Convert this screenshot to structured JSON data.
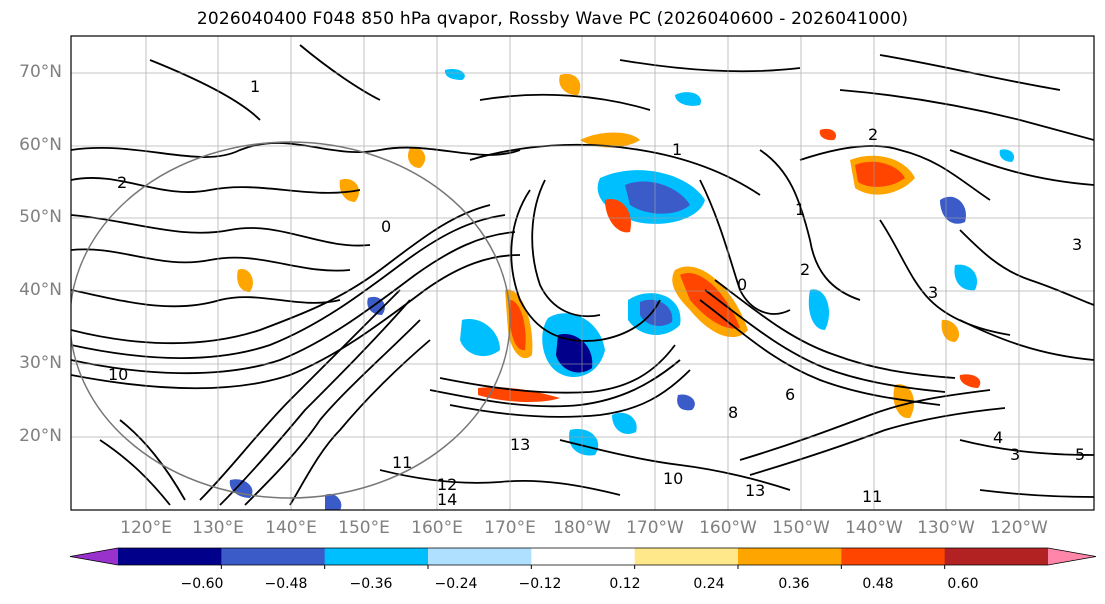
{
  "title": "2026040400 F048 850 hPa qvapor, Rossby Wave PC (2026040600 - 2026041000)",
  "map": {
    "lat_labels": [
      "70°N",
      "60°N",
      "50°N",
      "40°N",
      "30°N",
      "20°N"
    ],
    "lon_labels": [
      "120°E",
      "130°E",
      "140°E",
      "150°E",
      "160°E",
      "170°E",
      "180°W",
      "170°W",
      "160°W",
      "150°W",
      "140°W",
      "130°W",
      "120°W"
    ],
    "contour_labels": [
      "1",
      "2",
      "0",
      "1",
      "2",
      "3",
      "0",
      "1",
      "2",
      "3",
      "4",
      "3",
      "5",
      "6",
      "8",
      "10",
      "11",
      "12",
      "13",
      "14",
      "10",
      "11",
      "13"
    ]
  },
  "colorbar": {
    "ticks": [
      "−0.60",
      "−0.48",
      "−0.36",
      "−0.24",
      "−0.12",
      "0.12",
      "0.24",
      "0.36",
      "0.48",
      "0.60"
    ],
    "colors": [
      "#9932cc",
      "#00008b",
      "#3a5bc8",
      "#00bfff",
      "#b0e0ff",
      "#ffffff",
      "#ffe88a",
      "#ffa500",
      "#ff4500",
      "#b22222",
      "#ff86a8"
    ]
  }
}
